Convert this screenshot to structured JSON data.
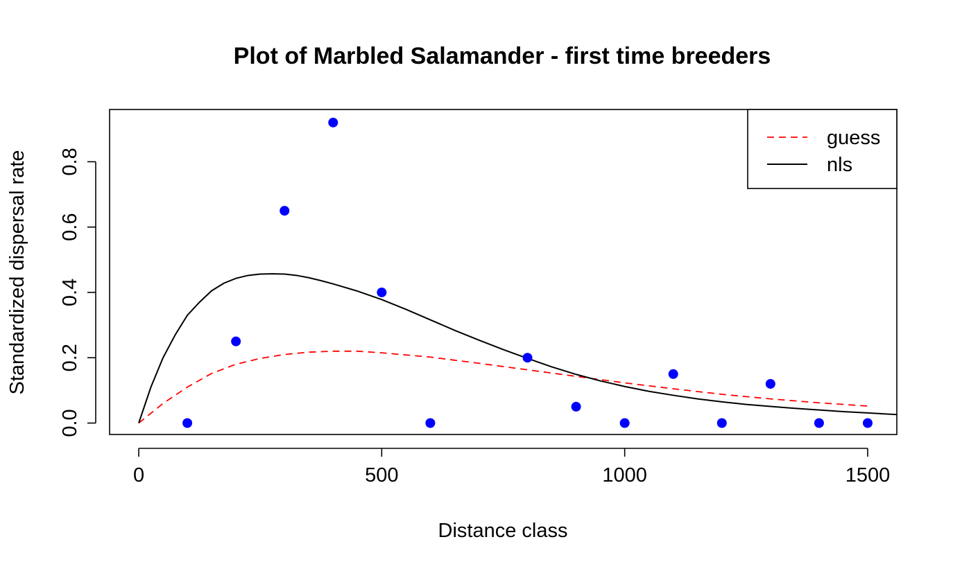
{
  "chart_data": {
    "type": "scatter",
    "title": "Plot of Marbled Salamander - first time breeders",
    "xlabel": "Distance class",
    "ylabel": "Standardized dispersal rate",
    "xlim": [
      -60,
      1560
    ],
    "ylim": [
      -0.035,
      0.96
    ],
    "x_ticks": [
      0,
      500,
      1000,
      1500
    ],
    "y_ticks": [
      0.0,
      0.2,
      0.4,
      0.6,
      0.8
    ],
    "x_tick_labels": [
      "0",
      "500",
      "1000",
      "1500"
    ],
    "y_tick_labels": [
      "0.0",
      "0.2",
      "0.4",
      "0.6",
      "0.8"
    ],
    "grid": false,
    "legend_position": "top-right",
    "points": {
      "color": "#0000ff",
      "x": [
        100,
        200,
        300,
        400,
        500,
        600,
        800,
        900,
        1000,
        1100,
        1200,
        1300,
        1400,
        1500
      ],
      "y": [
        0.0,
        0.25,
        0.65,
        0.92,
        0.4,
        0.0,
        0.2,
        0.05,
        0.0,
        0.15,
        0.0,
        0.12,
        0.0,
        0.0
      ]
    },
    "series": [
      {
        "name": "guess",
        "style": "dashed",
        "color": "#ff0000",
        "x": [
          0,
          50,
          100,
          150,
          200,
          250,
          300,
          350,
          400,
          450,
          500,
          600,
          700,
          800,
          900,
          1000,
          1100,
          1200,
          1300,
          1400,
          1500
        ],
        "y": [
          0.0,
          0.06,
          0.11,
          0.152,
          0.18,
          0.198,
          0.21,
          0.217,
          0.22,
          0.22,
          0.215,
          0.202,
          0.183,
          0.163,
          0.143,
          0.123,
          0.105,
          0.088,
          0.074,
          0.062,
          0.052
        ]
      },
      {
        "name": "nls",
        "style": "solid",
        "color": "#000000",
        "x": [
          0,
          25,
          50,
          75,
          100,
          125,
          150,
          175,
          200,
          225,
          250,
          275,
          300,
          325,
          350,
          375,
          400,
          450,
          500,
          550,
          600,
          650,
          700,
          750,
          800,
          850,
          900,
          950,
          1000,
          1050,
          1100,
          1150,
          1200,
          1250,
          1300,
          1350,
          1400,
          1450,
          1500,
          1560
        ],
        "y": [
          0.0,
          0.11,
          0.2,
          0.27,
          0.33,
          0.37,
          0.405,
          0.428,
          0.443,
          0.452,
          0.456,
          0.457,
          0.456,
          0.452,
          0.445,
          0.436,
          0.426,
          0.404,
          0.378,
          0.348,
          0.316,
          0.284,
          0.254,
          0.225,
          0.198,
          0.172,
          0.149,
          0.129,
          0.112,
          0.097,
          0.085,
          0.074,
          0.065,
          0.057,
          0.051,
          0.045,
          0.04,
          0.035,
          0.031,
          0.026
        ]
      }
    ]
  }
}
